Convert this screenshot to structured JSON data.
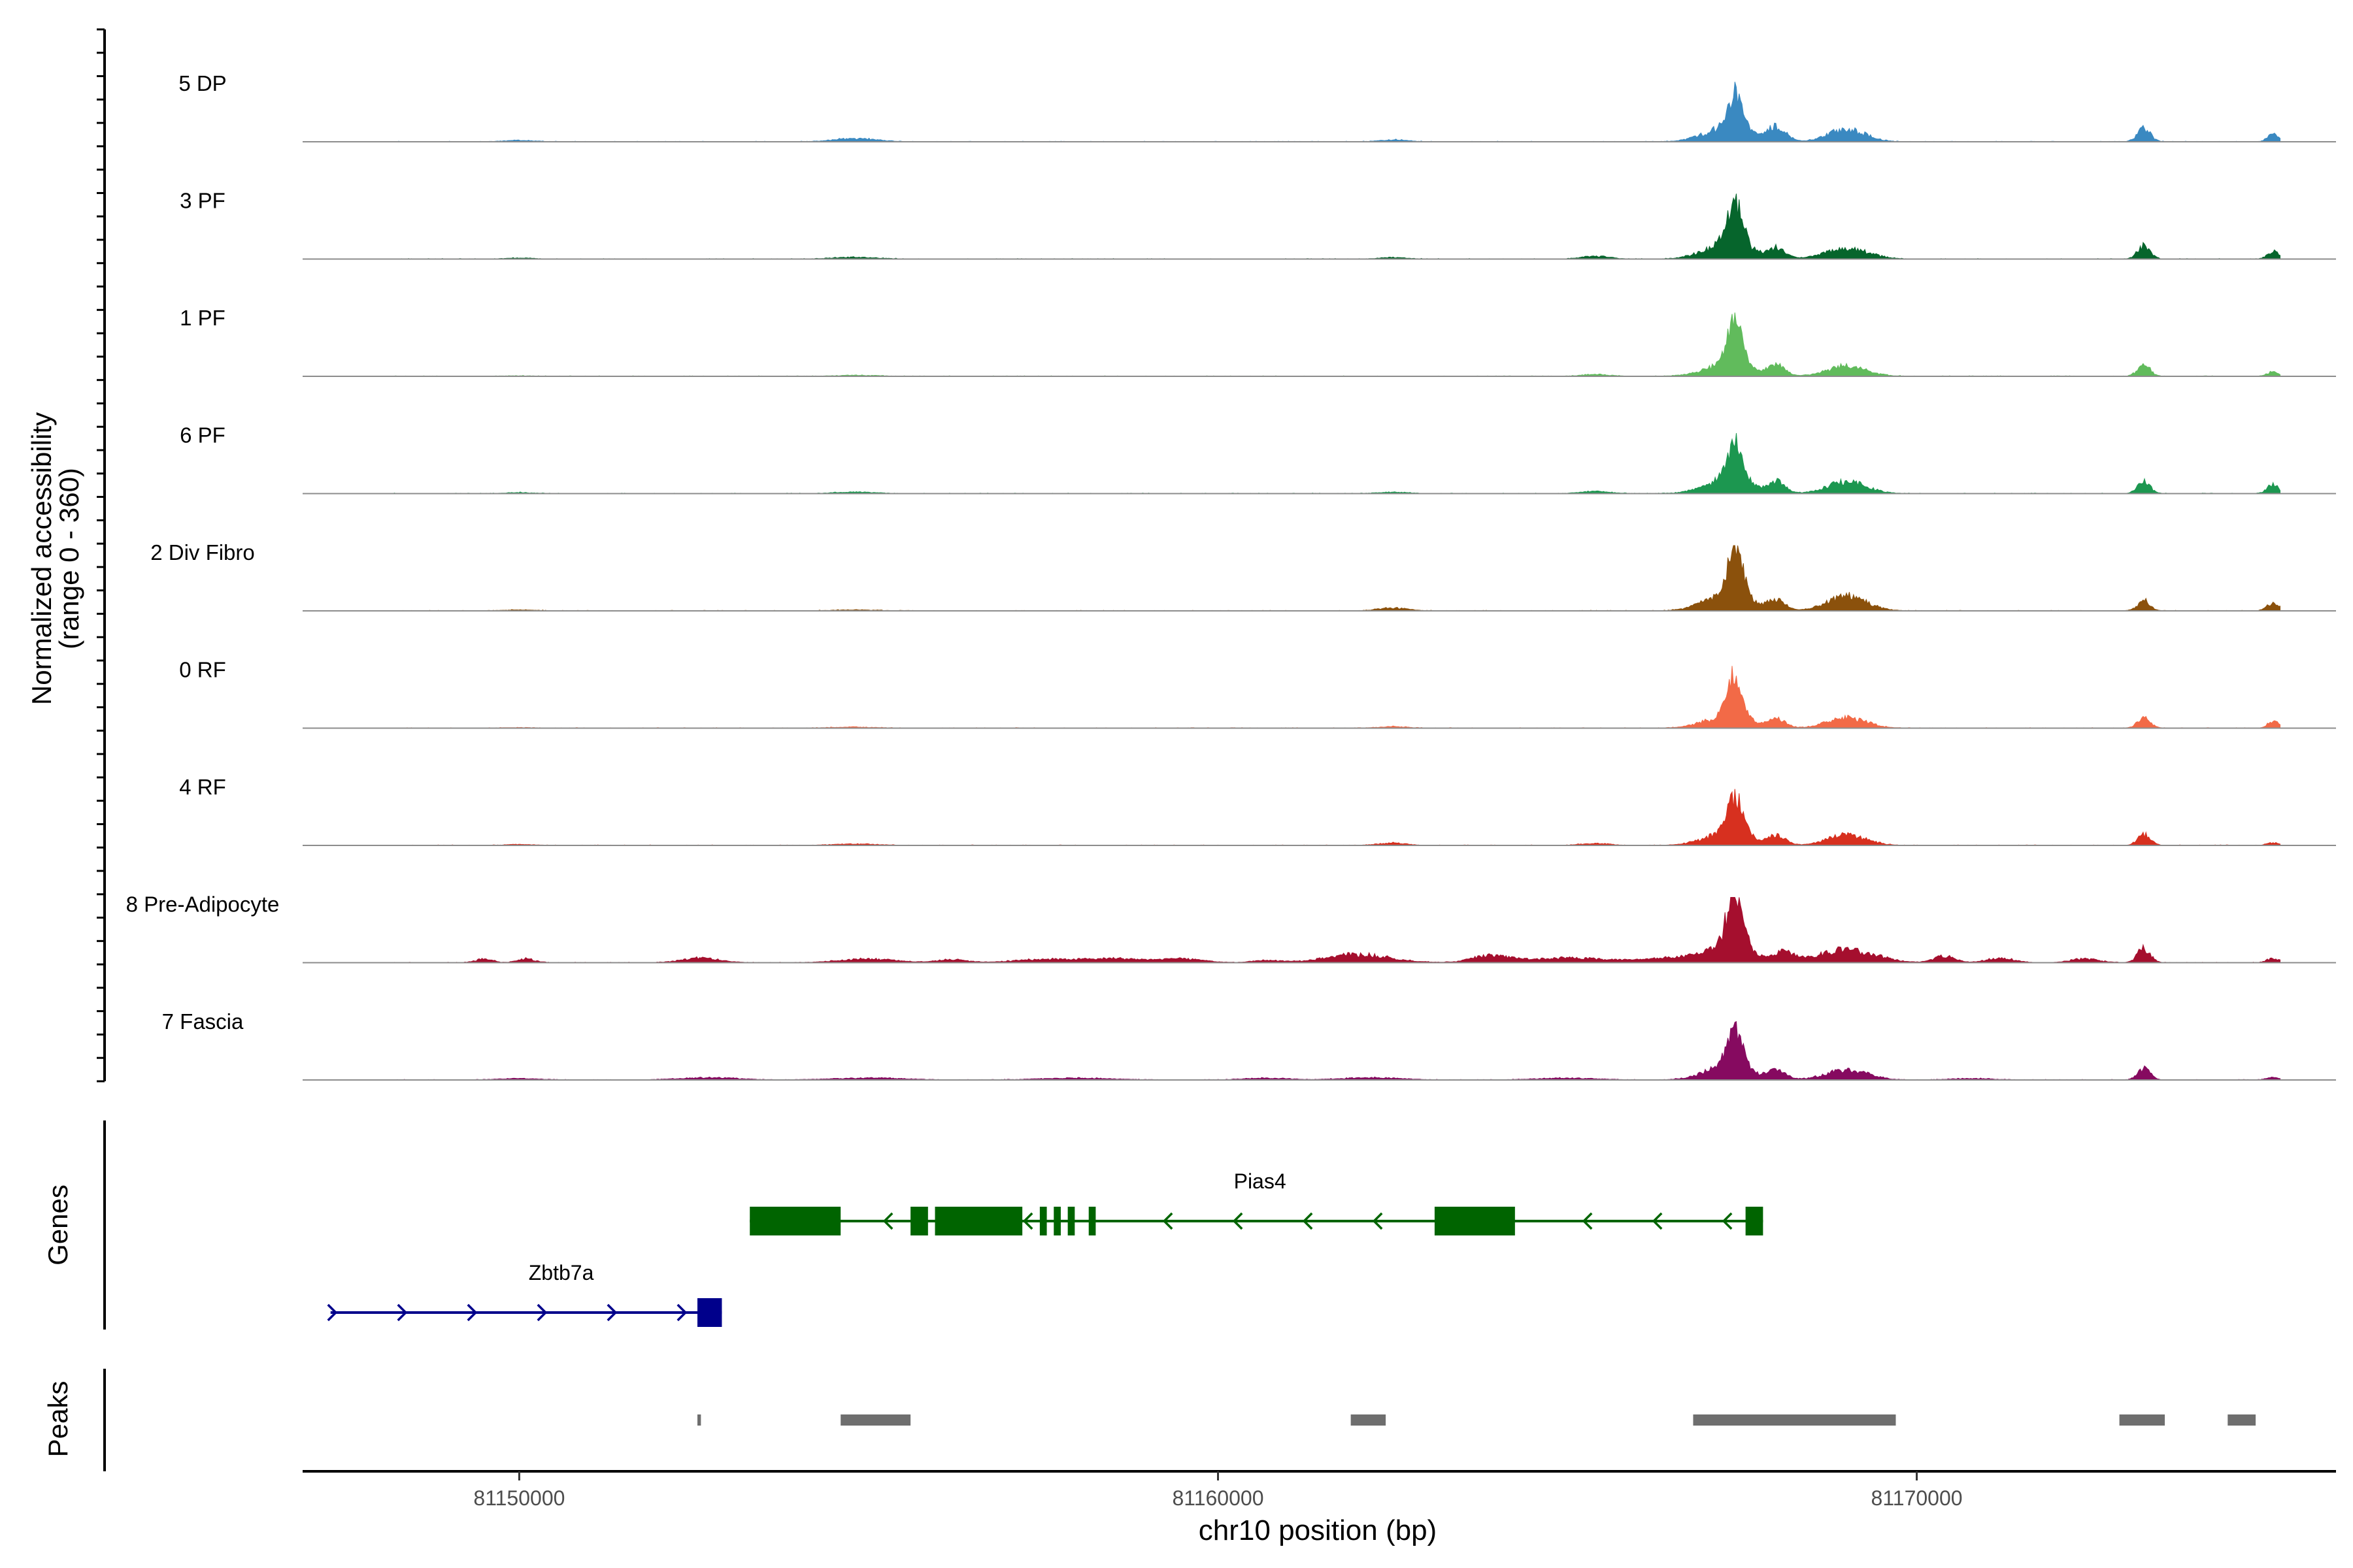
{
  "chart_data": {
    "type": "area",
    "title": "",
    "chromosome": "chr10",
    "xlabel": "chr10 position (bp)",
    "xlim": [
      81146900,
      81176000
    ],
    "xticks": [
      81150000,
      81160000,
      81170000
    ],
    "ylabel": "Normalized accessibility",
    "ylabel_range": "(range 0 - 360)",
    "ylim": [
      0,
      360
    ],
    "grid": false,
    "legend": "none",
    "region_end": 81175200,
    "tracks": [
      {
        "name": "5 DP",
        "color": "#3a89c1",
        "peaks": [
          [
            81150000,
            3,
            200
          ],
          [
            81154800,
            7,
            300
          ],
          [
            81167400,
            80,
            100
          ],
          [
            81167300,
            32,
            320
          ],
          [
            81168000,
            32,
            130
          ],
          [
            81169000,
            28,
            260
          ],
          [
            81173250,
            30,
            90
          ],
          [
            81175100,
            16,
            80
          ],
          [
            81162500,
            4,
            200
          ]
        ]
      },
      {
        "name": "3 PF",
        "color": "#06652c",
        "peaks": [
          [
            81150000,
            2,
            200
          ],
          [
            81154800,
            4,
            300
          ],
          [
            81167400,
            88,
            110
          ],
          [
            81167300,
            35,
            320
          ],
          [
            81168000,
            22,
            120
          ],
          [
            81169000,
            24,
            300
          ],
          [
            81173250,
            28,
            90
          ],
          [
            81175100,
            16,
            80
          ],
          [
            81162500,
            3,
            200
          ],
          [
            81165400,
            6,
            200
          ]
        ]
      },
      {
        "name": "1 PF",
        "color": "#61bb5c",
        "peaks": [
          [
            81150000,
            1,
            200
          ],
          [
            81154800,
            2,
            300
          ],
          [
            81167400,
            95,
            110
          ],
          [
            81167300,
            26,
            320
          ],
          [
            81168000,
            22,
            120
          ],
          [
            81169000,
            22,
            280
          ],
          [
            81173250,
            24,
            90
          ],
          [
            81175100,
            10,
            80
          ],
          [
            81165400,
            4,
            200
          ]
        ]
      },
      {
        "name": "6 PF",
        "color": "#1c9750",
        "peaks": [
          [
            81150000,
            2,
            200
          ],
          [
            81154800,
            3,
            300
          ],
          [
            81167400,
            80,
            110
          ],
          [
            81167300,
            30,
            320
          ],
          [
            81168000,
            25,
            120
          ],
          [
            81169000,
            26,
            280
          ],
          [
            81173250,
            26,
            90
          ],
          [
            81175100,
            20,
            80
          ],
          [
            81162500,
            3,
            200
          ],
          [
            81165400,
            5,
            200
          ]
        ]
      },
      {
        "name": "2 Div Fibro",
        "color": "#8b510c",
        "peaks": [
          [
            81150000,
            2,
            200
          ],
          [
            81154800,
            2,
            300
          ],
          [
            81167400,
            105,
            110
          ],
          [
            81167300,
            36,
            320
          ],
          [
            81168000,
            22,
            120
          ],
          [
            81169000,
            32,
            280
          ],
          [
            81173250,
            22,
            90
          ],
          [
            81175100,
            18,
            80
          ],
          [
            81162500,
            6,
            200
          ]
        ]
      },
      {
        "name": "0 RF",
        "color": "#f26a47",
        "peaks": [
          [
            81150000,
            1,
            200
          ],
          [
            81154800,
            2,
            300
          ],
          [
            81167400,
            88,
            110
          ],
          [
            81167300,
            26,
            320
          ],
          [
            81168000,
            18,
            120
          ],
          [
            81169000,
            22,
            280
          ],
          [
            81173250,
            24,
            90
          ],
          [
            81175100,
            14,
            80
          ],
          [
            81162500,
            3,
            200
          ]
        ]
      },
      {
        "name": "4 RF",
        "color": "#d7301f",
        "peaks": [
          [
            81150000,
            2,
            200
          ],
          [
            81154800,
            3,
            300
          ],
          [
            81167400,
            90,
            110
          ],
          [
            81167300,
            28,
            320
          ],
          [
            81168000,
            20,
            120
          ],
          [
            81169000,
            22,
            280
          ],
          [
            81173250,
            24,
            90
          ],
          [
            81175100,
            6,
            80
          ],
          [
            81162500,
            5,
            200
          ],
          [
            81165400,
            4,
            200
          ]
        ]
      },
      {
        "name": "8 Pre-Adipocyte",
        "color": "#a50f2e",
        "peaks": [
          [
            81149500,
            8,
            120
          ],
          [
            81150100,
            8,
            120
          ],
          [
            81152600,
            10,
            260
          ],
          [
            81155000,
            8,
            400
          ],
          [
            81156200,
            7,
            200
          ],
          [
            81157500,
            7,
            400
          ],
          [
            81158500,
            9,
            400
          ],
          [
            81159500,
            8,
            300
          ],
          [
            81160700,
            5,
            200
          ],
          [
            81162000,
            18,
            450
          ],
          [
            81163900,
            15,
            250
          ],
          [
            81165000,
            10,
            600
          ],
          [
            81166500,
            10,
            400
          ],
          [
            81167400,
            125,
            110
          ],
          [
            81167300,
            35,
            320
          ],
          [
            81168100,
            22,
            150
          ],
          [
            81169000,
            28,
            400
          ],
          [
            81170400,
            14,
            150
          ],
          [
            81171200,
            10,
            200
          ],
          [
            81172400,
            8,
            200
          ],
          [
            81173250,
            32,
            90
          ],
          [
            81175100,
            10,
            80
          ]
        ]
      },
      {
        "name": "7 Fascia",
        "color": "#860a60",
        "peaks": [
          [
            81150000,
            3,
            300
          ],
          [
            81152700,
            5,
            400
          ],
          [
            81155000,
            4,
            500
          ],
          [
            81158000,
            4,
            500
          ],
          [
            81160700,
            4,
            300
          ],
          [
            81162200,
            5,
            400
          ],
          [
            81165000,
            4,
            400
          ],
          [
            81167400,
            90,
            110
          ],
          [
            81167300,
            30,
            320
          ],
          [
            81168000,
            22,
            120
          ],
          [
            81169000,
            22,
            300
          ],
          [
            81170800,
            3,
            300
          ],
          [
            81173250,
            24,
            90
          ],
          [
            81175100,
            6,
            80
          ]
        ]
      }
    ],
    "genes": [
      {
        "name": "Zbtb7a",
        "strand": "+",
        "color": "#00008b",
        "start": 81147300,
        "end": 81152900,
        "exons": [
          [
            81152550,
            81152900
          ]
        ]
      },
      {
        "name": "Pias4",
        "strand": "-",
        "color": "#006400",
        "start": 81153300,
        "end": 81167800,
        "exons": [
          [
            81153300,
            81154600
          ],
          [
            81155600,
            81155850
          ],
          [
            81155950,
            81157200
          ],
          [
            81157450,
            81157550
          ],
          [
            81157650,
            81157750
          ],
          [
            81157850,
            81157950
          ],
          [
            81158150,
            81158250
          ],
          [
            81163100,
            81164250
          ],
          [
            81167550,
            81167800
          ]
        ]
      }
    ],
    "peaks_track": [
      [
        81152550,
        81152600
      ],
      [
        81154600,
        81155600
      ],
      [
        81161900,
        81162400
      ],
      [
        81166800,
        81169700
      ],
      [
        81172900,
        81173550
      ],
      [
        81174450,
        81174850
      ]
    ],
    "panel_labels": {
      "genes": "Genes",
      "peaks": "Peaks"
    }
  }
}
